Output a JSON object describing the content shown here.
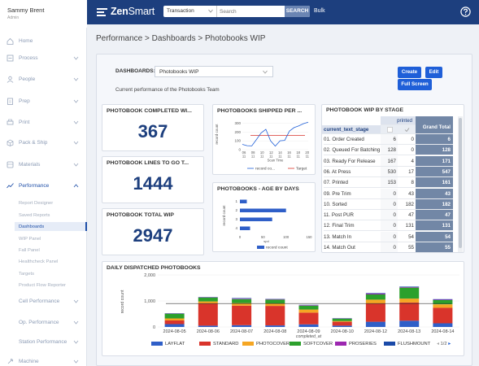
{
  "user": {
    "name": "Sammy Brent",
    "role": "Admin"
  },
  "nav": {
    "items": [
      {
        "label": "Home",
        "icon": "home-icon",
        "chev": false
      },
      {
        "label": "Process",
        "icon": "process-icon",
        "chev": true
      },
      {
        "label": "People",
        "icon": "people-icon",
        "chev": true
      },
      {
        "label": "Prep",
        "icon": "prep-icon",
        "chev": true
      },
      {
        "label": "Print",
        "icon": "print-icon",
        "chev": true
      },
      {
        "label": "Pack & Ship",
        "icon": "pack-ship-icon",
        "chev": true
      },
      {
        "label": "Materials",
        "icon": "materials-icon",
        "chev": true
      },
      {
        "label": "Performance",
        "icon": "performance-icon",
        "chev": true
      },
      {
        "label": "Cell Performance",
        "icon": "",
        "chev": true
      },
      {
        "label": "Op. Performance",
        "icon": "",
        "chev": true
      },
      {
        "label": "Station Performance",
        "icon": "",
        "chev": true
      },
      {
        "label": "Machine",
        "icon": "machine-icon",
        "chev": true
      }
    ],
    "performance_sub": [
      "Report Designer",
      "Saved Reports",
      "Dashboards",
      "WIP Panel",
      "Fall Panel",
      "Healthcheck Panel",
      "Targets",
      "Product Flow Reporter"
    ]
  },
  "topbar": {
    "logo_bold": "Zen",
    "logo_thin": "Smart",
    "search_type": "Transaction",
    "search_placeholder": "Search",
    "search_button": "SEARCH",
    "bulk": "Bulk"
  },
  "breadcrumb": "Performance > Dashboards > Photobooks WIP",
  "dashboard": {
    "label": "DASHBOARDS:",
    "selected": "Photobooks WIP",
    "description": "Current performance of the Photobooks Team",
    "buttons": {
      "create": "Create",
      "edit": "Edit",
      "fullscreen": "Full Screen"
    }
  },
  "kpis": [
    {
      "title": "PHOTOBOOK COMPLETED WI...",
      "value": "367"
    },
    {
      "title": "PHOTOBOOK LINES TO GO T...",
      "value": "1444"
    },
    {
      "title": "PHOTOBOOK TOTAL WIP",
      "value": "2947"
    }
  ],
  "shipped_chart": {
    "title": "PHOTOBOOKS SHIPPED PER ...",
    "ylabel": "record count",
    "xlabel": "Scan Time",
    "yticks": [
      "300",
      "200",
      "100",
      "0"
    ],
    "xticks": [
      "06",
      "08",
      "10",
      "12",
      "14",
      "16",
      "18",
      "20"
    ],
    "xticks2": [
      "11",
      "11",
      "11",
      "11",
      "11",
      "11",
      "11",
      "11"
    ],
    "values": [
      60,
      45,
      42,
      115,
      190,
      230,
      100,
      40,
      100,
      105,
      210,
      250,
      270,
      295,
      310
    ],
    "target": 160,
    "ymax": 350,
    "legend": [
      "record co...",
      "Target"
    ],
    "colors": {
      "series": "#1f5fd8",
      "target": "#d9342b"
    }
  },
  "age_chart": {
    "title": "PHOTOBOOKS - AGE BY DAYS",
    "ylabel": "record count",
    "xlabel": "spd",
    "categories": [
      "1",
      "2",
      "3",
      "4"
    ],
    "values": [
      15,
      100,
      70,
      22
    ],
    "xticks": [
      "0",
      "50",
      "100",
      "150"
    ],
    "xmax": 150,
    "legend": "record count",
    "color": "#2f5fc8"
  },
  "pivot": {
    "title": "PHOTOBOOK WIP BY STAGE",
    "col_group": "printed",
    "row_header": "current_text_stage",
    "total_header": "Grand Total",
    "rows": [
      {
        "stage": "01. Order Created",
        "a": "6",
        "b": "0",
        "total": "6"
      },
      {
        "stage": "02. Queued For Batching",
        "a": "128",
        "b": "0",
        "total": "128"
      },
      {
        "stage": "03. Ready For Release",
        "a": "167",
        "b": "4",
        "total": "171"
      },
      {
        "stage": "06. At Press",
        "a": "530",
        "b": "17",
        "total": "547"
      },
      {
        "stage": "07. Printed",
        "a": "153",
        "b": "8",
        "total": "161"
      },
      {
        "stage": "09. Pre Trim",
        "a": "0",
        "b": "43",
        "total": "43"
      },
      {
        "stage": "10. Sorted",
        "a": "0",
        "b": "182",
        "total": "182"
      },
      {
        "stage": "11. Post PUR",
        "a": "0",
        "b": "47",
        "total": "47"
      },
      {
        "stage": "12. Final Trim",
        "a": "0",
        "b": "131",
        "total": "131"
      },
      {
        "stage": "13. Match In",
        "a": "0",
        "b": "54",
        "total": "54"
      },
      {
        "stage": "14. Match Out",
        "a": "0",
        "b": "55",
        "total": "55"
      }
    ]
  },
  "daily_chart": {
    "title": "DAILY DISPATCHED PHOTOBOOKS",
    "ylabel": "record count",
    "xlabel": "completed_at",
    "yticks": [
      "2,000",
      "1,000",
      "0"
    ],
    "ymax": 2000,
    "categories": [
      "2024-08-05",
      "2024-08-06",
      "2024-08-07",
      "2024-08-08",
      "2024-08-09",
      "2024-08-10",
      "2024-08-12",
      "2024-08-13",
      "2024-08-14"
    ],
    "series": [
      {
        "name": "LAYFLAT",
        "color": "#2f5fc8",
        "values": [
          110,
          50,
          70,
          60,
          100,
          50,
          200,
          240,
          140
        ]
      },
      {
        "name": "STANDARD",
        "color": "#d9342b",
        "values": [
          140,
          850,
          750,
          750,
          450,
          150,
          700,
          700,
          600
        ]
      },
      {
        "name": "PHOTOCOVER",
        "color": "#f5a623",
        "values": [
          80,
          80,
          100,
          90,
          120,
          30,
          150,
          150,
          130
        ]
      },
      {
        "name": "SOFTCOVER",
        "color": "#2ca02c",
        "values": [
          180,
          150,
          150,
          150,
          150,
          90,
          200,
          420,
          160
        ]
      },
      {
        "name": "PROSERIES",
        "color": "#9c27b0",
        "values": [
          10,
          10,
          20,
          20,
          20,
          10,
          30,
          20,
          20
        ]
      },
      {
        "name": "FLUSHMOUNT",
        "color": "#1a4aa8",
        "values": [
          10,
          10,
          20,
          10,
          10,
          10,
          20,
          20,
          20
        ]
      }
    ],
    "target": 900,
    "pager": "1/2"
  }
}
